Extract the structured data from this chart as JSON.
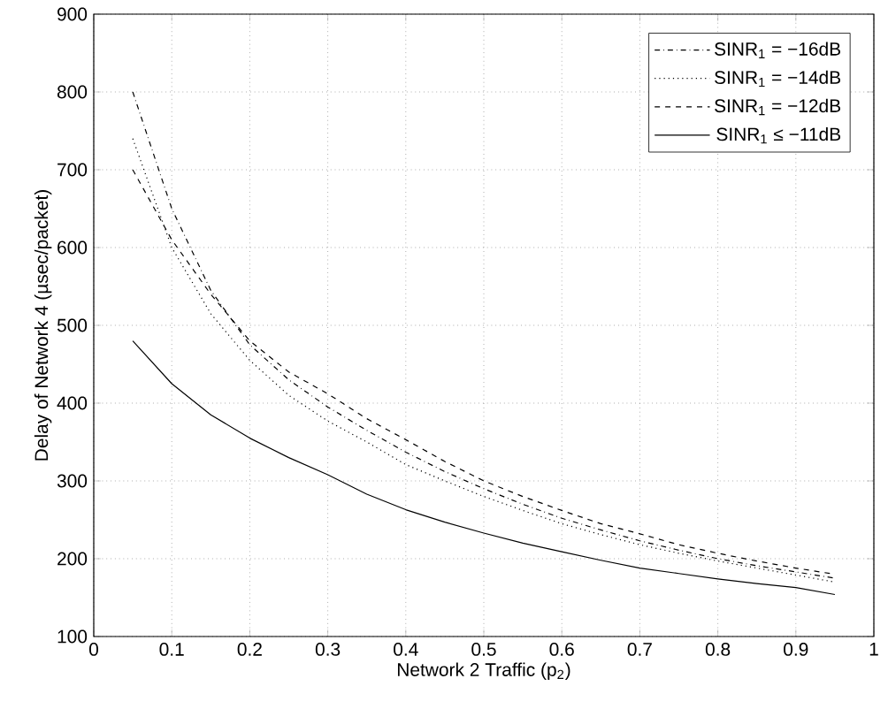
{
  "chart_data": {
    "type": "line",
    "xlabel": "Network 2 Traffic (p$_{2}$)",
    "ylabel": "Delay of Network 4 (µsec/packet)",
    "x": [
      0.05,
      0.1,
      0.15,
      0.2,
      0.25,
      0.3,
      0.35,
      0.4,
      0.45,
      0.5,
      0.55,
      0.6,
      0.65,
      0.7,
      0.75,
      0.8,
      0.85,
      0.9,
      0.95
    ],
    "series": [
      {
        "name": "SINR$_{1}$ = −16dB",
        "color": "#000000",
        "line_style": "dashdot",
        "values": [
          800,
          650,
          545,
          475,
          430,
          395,
          365,
          337,
          312,
          290,
          270,
          252,
          237,
          223,
          211,
          200,
          191,
          183,
          175
        ]
      },
      {
        "name": "SINR$_{1}$ = −14dB",
        "color": "#000000",
        "line_style": "dotted",
        "values": [
          740,
          600,
          515,
          455,
          410,
          377,
          350,
          321,
          300,
          280,
          262,
          245,
          231,
          218,
          207,
          197,
          188,
          179,
          170
        ]
      },
      {
        "name": "SINR$_{1}$ = −12dB",
        "color": "#000000",
        "line_style": "dashed",
        "values": [
          700,
          610,
          540,
          480,
          440,
          412,
          380,
          353,
          325,
          300,
          280,
          262,
          245,
          232,
          218,
          207,
          197,
          188,
          180
        ]
      },
      {
        "name": "SINR$_{1}$ ≤ −11dB",
        "color": "#000000",
        "line_style": "solid",
        "values": [
          480,
          425,
          385,
          355,
          330,
          308,
          283,
          263,
          247,
          233,
          220,
          209,
          198,
          188,
          181,
          174,
          168,
          163,
          154
        ]
      }
    ],
    "xlim": [
      0,
      1
    ],
    "ylim": [
      100,
      900
    ],
    "xticks": [
      0,
      0.1,
      0.2,
      0.3,
      0.4,
      0.5,
      0.6,
      0.7,
      0.8,
      0.9,
      1
    ],
    "yticks": [
      100,
      200,
      300,
      400,
      500,
      600,
      700,
      800,
      900
    ],
    "grid": true,
    "legend": "top right"
  }
}
